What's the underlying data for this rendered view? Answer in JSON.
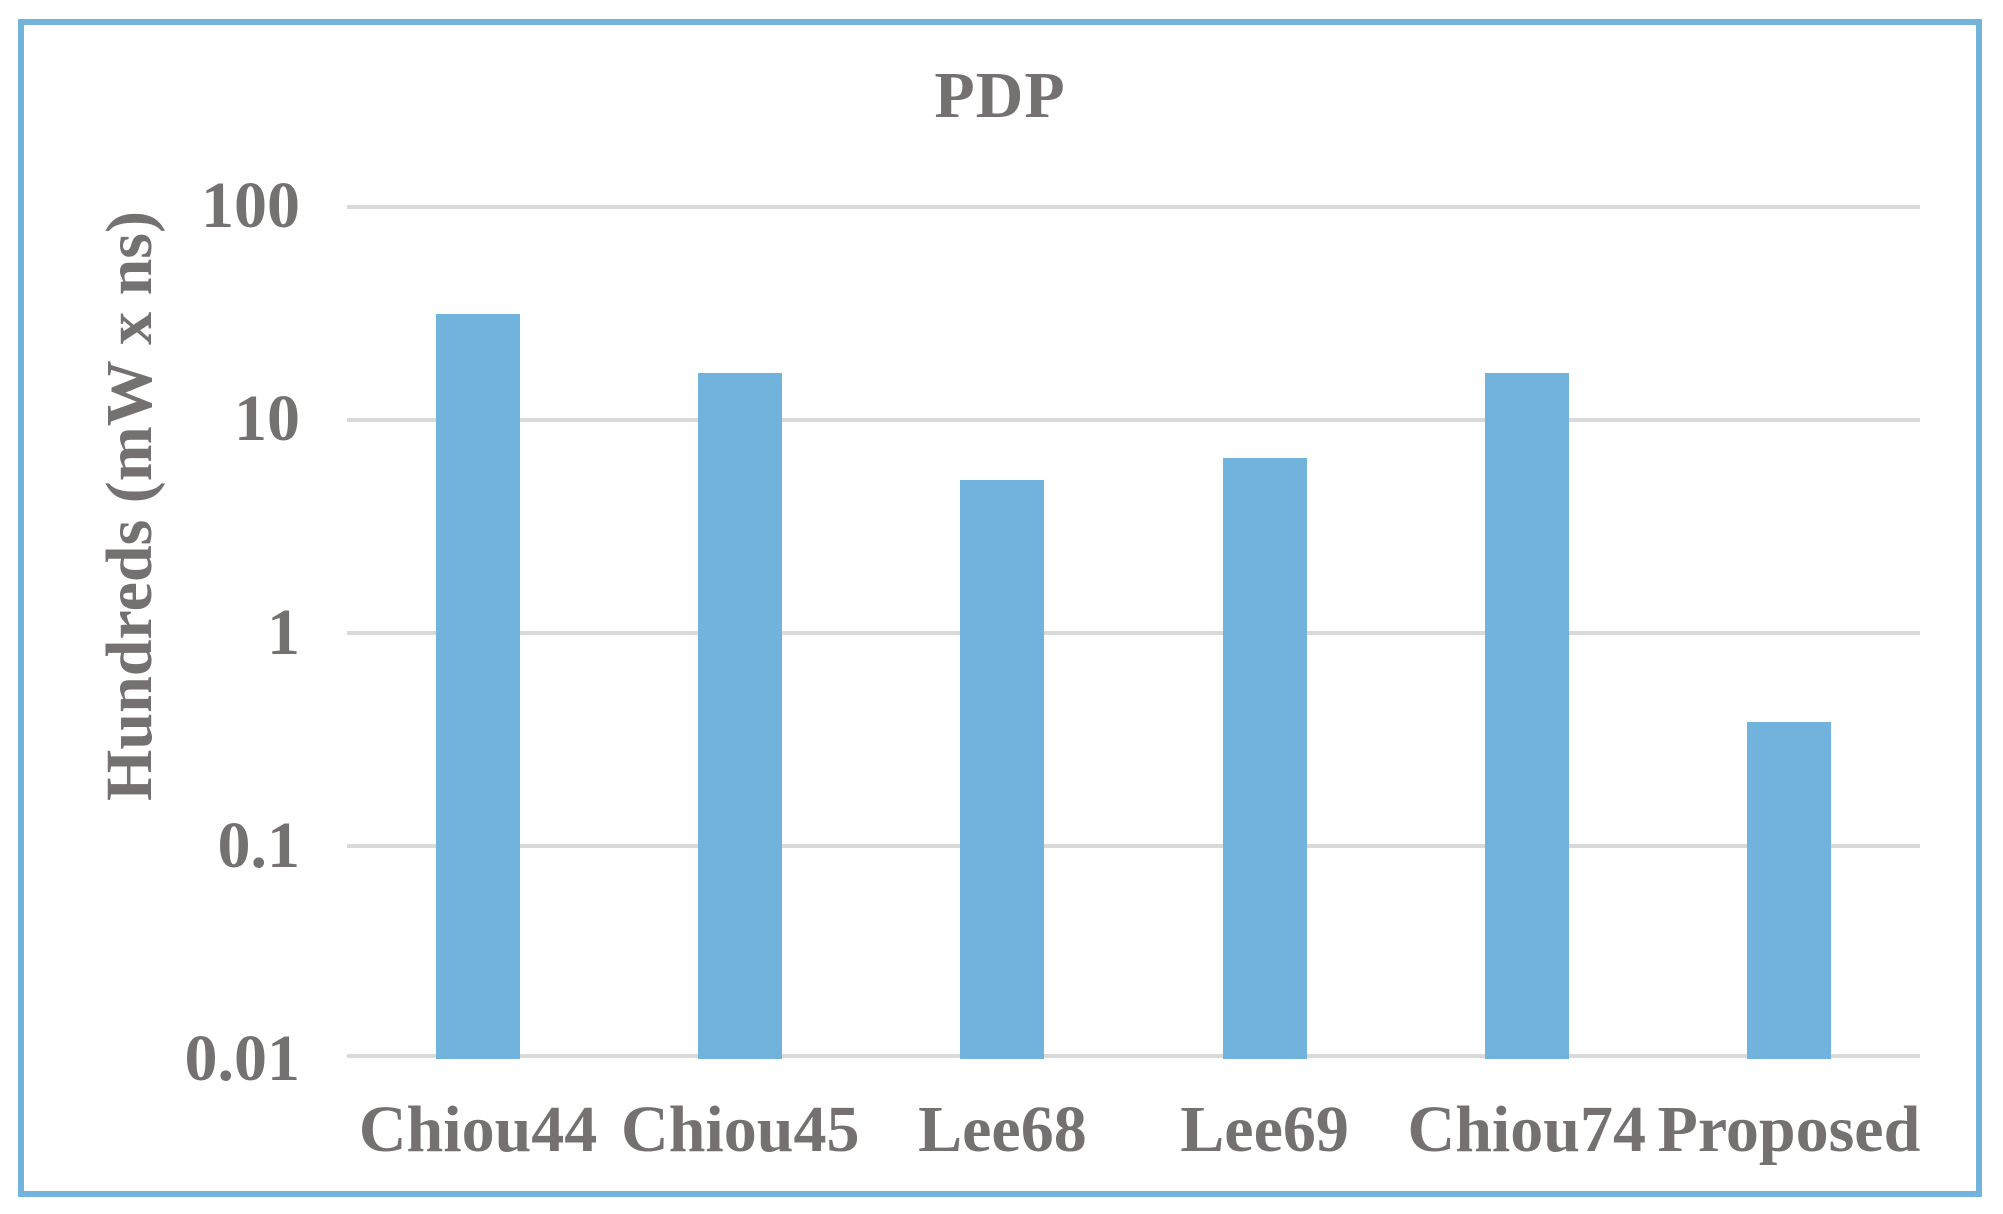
{
  "chart_data": {
    "type": "bar",
    "title": "PDP",
    "xlabel": "",
    "ylabel": "Hundreds (mW x ns)",
    "categories": [
      "Chiou44",
      "Chiou45",
      "Lee68",
      "Lee69",
      "Chiou74",
      "Proposed"
    ],
    "values": [
      31,
      16.5,
      5.2,
      6.6,
      16.5,
      0.38
    ],
    "yscale": "log",
    "ylim": [
      0.01,
      100
    ],
    "yticks": [
      100,
      10,
      1,
      0.1,
      0.01
    ],
    "ytick_labels": [
      "100",
      "10",
      "1",
      "0.1",
      "0.01"
    ],
    "grid": true,
    "legend_position": "none",
    "series_name": "PDP"
  },
  "colors": {
    "bar_fill": "#71B3DD",
    "outer_border": "#71B3DD",
    "gridline": "#D9D9D9",
    "text": "#767171",
    "background": "#FFFFFF"
  }
}
